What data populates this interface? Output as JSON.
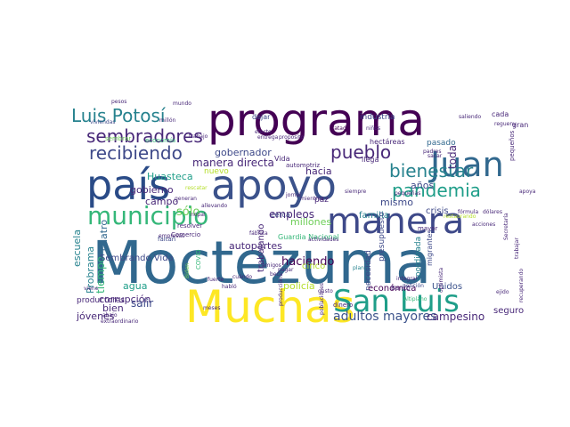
{
  "palette": {
    "background": "#ffffff",
    "colors": [
      "#440154",
      "#482878",
      "#3e4989",
      "#31688e",
      "#26828e",
      "#1f9e89",
      "#35b779",
      "#6ece58",
      "#b5de2b",
      "#fde725"
    ]
  },
  "words": [
    {
      "text": "Moctezuma",
      "color": "#31688e"
    },
    {
      "text": "programa",
      "color": "#440154"
    },
    {
      "text": "país",
      "color": "#2a4b87"
    },
    {
      "text": "apoyo",
      "color": "#3b528b"
    },
    {
      "text": "manera",
      "color": "#3e4989"
    },
    {
      "text": "Muchas",
      "color": "#fde725"
    },
    {
      "text": "San Luis",
      "color": "#1f9e89"
    },
    {
      "text": "Juan",
      "color": "#31688e"
    },
    {
      "text": "municipio",
      "color": "#35b779"
    },
    {
      "text": "Luis Potosí",
      "color": "#26828e"
    },
    {
      "text": "sembradores",
      "color": "#482878"
    },
    {
      "text": "recibiendo",
      "color": "#3e4989"
    },
    {
      "text": "bienestar",
      "color": "#26828e"
    },
    {
      "text": "pandemia",
      "color": "#1f9e89"
    },
    {
      "text": "pueblo",
      "color": "#482878"
    },
    {
      "text": "adultos mayores",
      "color": "#3b528b"
    },
    {
      "text": "campesino",
      "color": "#482878"
    },
    {
      "text": "corrupción",
      "color": "#482878"
    },
    {
      "text": "jóvenes",
      "color": "#482878"
    },
    {
      "text": "haciendo",
      "color": "#440154"
    },
    {
      "text": "empleos",
      "color": "#482878"
    },
    {
      "text": "millones",
      "color": "#6ece58"
    },
    {
      "text": "manera directa",
      "color": "#482878"
    },
    {
      "text": "gobernador",
      "color": "#3e4989"
    },
    {
      "text": "hacia",
      "color": "#482878"
    },
    {
      "text": "Huasteca",
      "color": "#1f9e89"
    },
    {
      "text": "gobierno",
      "color": "#482878"
    },
    {
      "text": "escuela",
      "color": "#26828e"
    },
    {
      "text": "Probrama",
      "color": "#26828e"
    },
    {
      "text": "cuatro",
      "color": "#31688e"
    },
    {
      "text": "tiempo",
      "color": "#35b779"
    },
    {
      "text": "industria",
      "color": "#3e4989"
    },
    {
      "text": "Tratado",
      "color": "#440154"
    },
    {
      "text": "hectáreas",
      "color": "#482878"
    },
    {
      "text": "llega",
      "color": "#482878"
    },
    {
      "text": "pasado",
      "color": "#31688e"
    },
    {
      "text": "crisis",
      "color": "#3e4989"
    },
    {
      "text": "familia",
      "color": "#26828e"
    },
    {
      "text": "años",
      "color": "#3e4989"
    },
    {
      "text": "mismo",
      "color": "#3e4989"
    },
    {
      "text": "sólo",
      "color": "#6ece58"
    },
    {
      "text": "campo",
      "color": "#482878"
    },
    {
      "text": "agua",
      "color": "#1f9e89"
    },
    {
      "text": "bien",
      "color": "#482878"
    },
    {
      "text": "salir",
      "color": "#3e4989"
    },
    {
      "text": "autopartes",
      "color": "#482878"
    },
    {
      "text": "policía",
      "color": "#b5de2b"
    },
    {
      "text": "económica",
      "color": "#440154"
    },
    {
      "text": "Unidos",
      "color": "#3b528b"
    },
    {
      "text": "seguro",
      "color": "#482878"
    },
    {
      "text": "Sembrando Vida",
      "color": "#3e4989"
    },
    {
      "text": "productores",
      "color": "#482878"
    },
    {
      "text": "cinco",
      "color": "#b5de2b"
    },
    {
      "text": "paz",
      "color": "#482878"
    },
    {
      "text": "toda",
      "color": "#482878"
    },
    {
      "text": "cada",
      "color": "#482878"
    },
    {
      "text": "trabajando",
      "color": "#482878"
    },
    {
      "text": "presupuesto",
      "color": "#3e4989"
    },
    {
      "text": "coordinada",
      "color": "#26828e"
    },
    {
      "text": "necesidad",
      "color": "#3e4989"
    },
    {
      "text": "migrantes",
      "color": "#3e4989"
    },
    {
      "text": "Guardia Nacional",
      "color": "#35b779"
    },
    {
      "text": "cerca",
      "color": "#3e4989"
    },
    {
      "text": "Vida",
      "color": "#482878"
    },
    {
      "text": "automotriz",
      "color": "#482878"
    },
    {
      "text": "dejar",
      "color": "#3e4989"
    },
    {
      "text": "economía",
      "color": "#35b779"
    },
    {
      "text": "trabajo",
      "color": "#482878"
    },
    {
      "text": "sembrar",
      "color": "#6ece58"
    },
    {
      "text": "nuevo",
      "color": "#b5de2b"
    },
    {
      "text": "fábrica",
      "color": "#482878"
    },
    {
      "text": "faltan",
      "color": "#3e4989"
    },
    {
      "text": "resolver",
      "color": "#482878"
    },
    {
      "text": "Comercio",
      "color": "#482878"
    },
    {
      "text": "empresas",
      "color": "#482878"
    },
    {
      "text": "pequeñas",
      "color": "#482878"
    },
    {
      "text": "integral",
      "color": "#482878"
    },
    {
      "text": "petición",
      "color": "#3e4989"
    },
    {
      "text": "Altiplano",
      "color": "#35b779"
    },
    {
      "text": "ejido",
      "color": "#482878"
    },
    {
      "text": "dinero",
      "color": "#482878"
    },
    {
      "text": "Banco",
      "color": "#482878"
    },
    {
      "text": "gusto",
      "color": "#482878"
    },
    {
      "text": "plan",
      "color": "#26828e"
    },
    {
      "text": "siempre",
      "color": "#482878"
    },
    {
      "text": "mayor",
      "color": "#482878"
    },
    {
      "text": "padres",
      "color": "#482878"
    },
    {
      "text": "niños",
      "color": "#482878"
    },
    {
      "text": "efecto",
      "color": "#482878"
    },
    {
      "text": "entrega",
      "color": "#482878"
    },
    {
      "text": "saliendo",
      "color": "#482878"
    },
    {
      "text": "pesos",
      "color": "#482878"
    },
    {
      "text": "mundo",
      "color": "#482878"
    },
    {
      "text": "millón",
      "color": "#482878"
    },
    {
      "text": "viviendas",
      "color": "#3e4989"
    },
    {
      "text": "pequeños",
      "color": "#482878"
    },
    {
      "text": "gran",
      "color": "#482878"
    },
    {
      "text": "apoya",
      "color": "#482878"
    },
    {
      "text": "mientras",
      "color": "#482878"
    },
    {
      "text": "jornal",
      "color": "#482878"
    },
    {
      "text": "beca",
      "color": "#482878"
    },
    {
      "text": "amigos",
      "color": "#482878"
    },
    {
      "text": "pagar",
      "color": "#482878"
    },
    {
      "text": "meses",
      "color": "#482878"
    },
    {
      "text": "producción",
      "color": "#482878"
    },
    {
      "text": "poblaciones",
      "color": "#482878"
    },
    {
      "text": "abajo",
      "color": "#482878"
    },
    {
      "text": "extraordinario",
      "color": "#482878"
    },
    {
      "text": "viene",
      "color": "#482878"
    },
    {
      "text": "habló",
      "color": "#482878"
    },
    {
      "text": "fuerte",
      "color": "#482878"
    },
    {
      "text": "generan",
      "color": "#482878"
    },
    {
      "text": "allevando",
      "color": "#482878"
    },
    {
      "text": "nopal",
      "color": "#482878"
    },
    {
      "text": "rescatar",
      "color": "#b5de2b"
    },
    {
      "text": "COVID",
      "color": "#35b779"
    },
    {
      "text": "Biden",
      "color": "#6ece58"
    },
    {
      "text": "cuándo",
      "color": "#482878"
    },
    {
      "text": "propósito",
      "color": "#482878"
    },
    {
      "text": "actividades",
      "color": "#482878"
    },
    {
      "text": "acciones",
      "color": "#482878"
    },
    {
      "text": "Secretaría",
      "color": "#482878"
    },
    {
      "text": "fórmula",
      "color": "#482878"
    },
    {
      "text": "dólares",
      "color": "#482878"
    },
    {
      "text": "restaurando",
      "color": "#b5de2b"
    },
    {
      "text": "optimista",
      "color": "#482878"
    },
    {
      "text": "trabajar",
      "color": "#482878"
    },
    {
      "text": "recuperando",
      "color": "#482878"
    },
    {
      "text": "sacar",
      "color": "#482878"
    },
    {
      "text": "regueny",
      "color": "#482878"
    }
  ]
}
